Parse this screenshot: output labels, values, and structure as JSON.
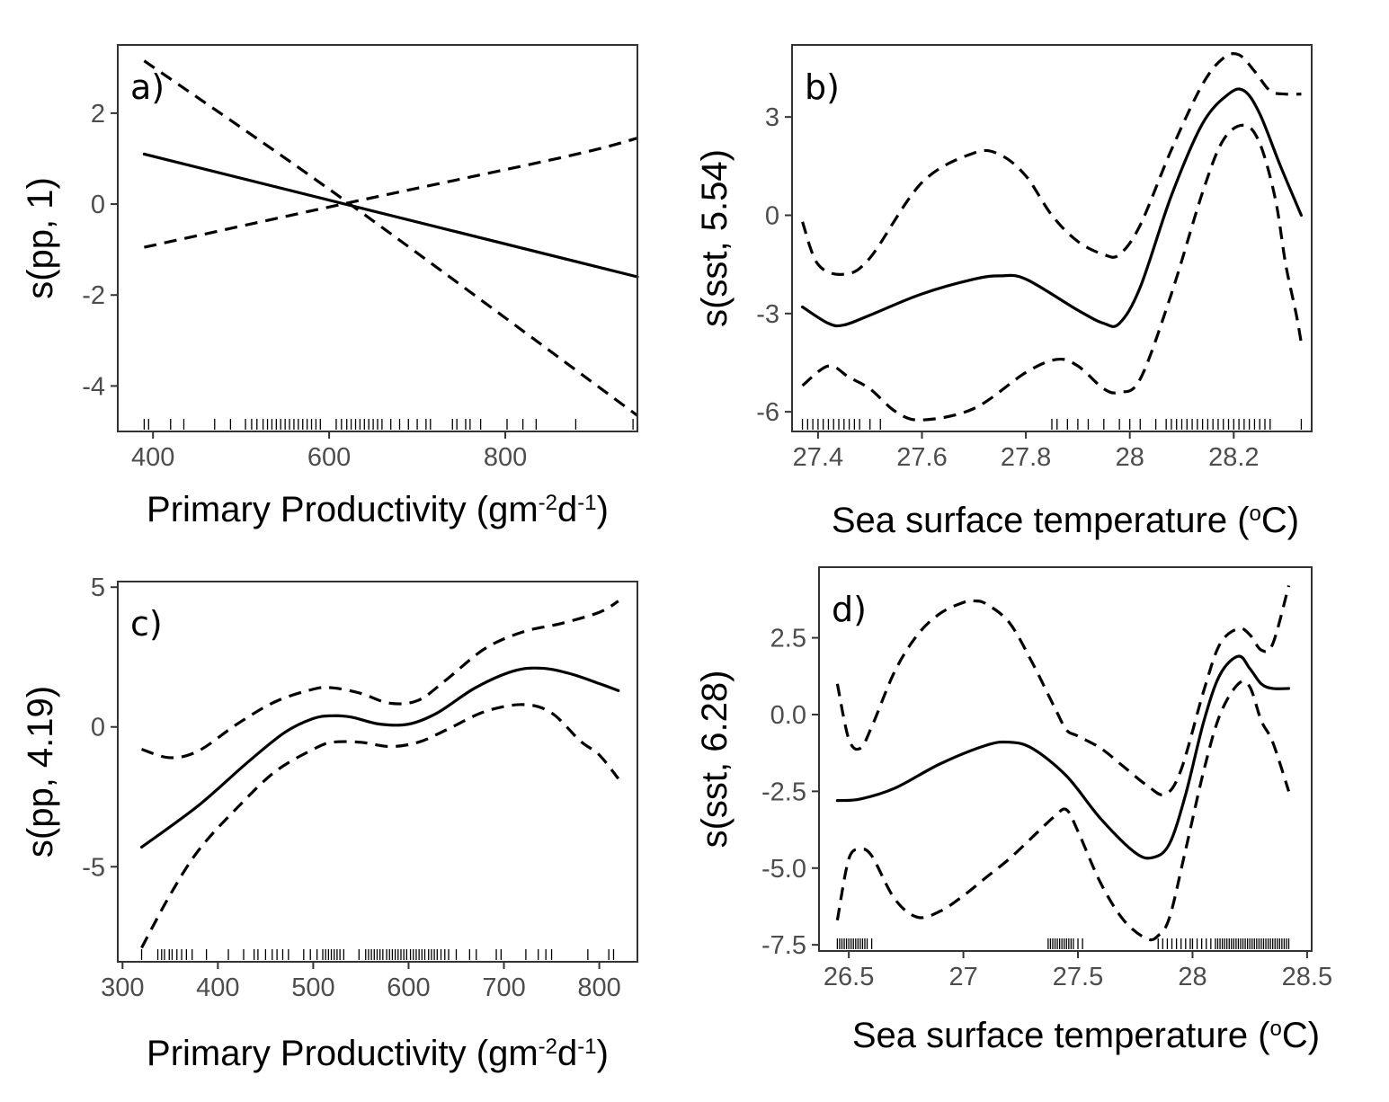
{
  "chart_data": [
    {
      "panel_label": "a)",
      "type": "line",
      "xlabel": {
        "main": "Primary Productivity (gm",
        "sup1": "-2",
        "mid": "d",
        "sup2": "-1",
        "end": ")"
      },
      "ylabel": "s(pp, 1)",
      "xlim": [
        360,
        950
      ],
      "ylim": [
        -5,
        3.5
      ],
      "x_ticks": [
        400,
        600,
        800
      ],
      "y_ticks": [
        2,
        0,
        -2,
        -4
      ],
      "series": [
        {
          "role": "fit",
          "x": [
            390,
            950
          ],
          "y": [
            1.1,
            -1.6
          ]
        },
        {
          "role": "upper",
          "x": [
            390,
            620,
            950
          ],
          "y": [
            3.15,
            0.05,
            -4.65
          ]
        },
        {
          "role": "lower",
          "x": [
            390,
            620,
            870,
            950
          ],
          "y": [
            -0.95,
            0.02,
            1.05,
            1.45
          ]
        }
      ],
      "rug": [
        390,
        395,
        420,
        435,
        470,
        488,
        505,
        512,
        518,
        525,
        530,
        535,
        540,
        545,
        550,
        555,
        560,
        565,
        570,
        575,
        580,
        585,
        590,
        608,
        614,
        620,
        625,
        630,
        635,
        640,
        645,
        650,
        655,
        660,
        670,
        680,
        690,
        700,
        710,
        715,
        740,
        745,
        755,
        760,
        772,
        802,
        820,
        835,
        880,
        945
      ]
    },
    {
      "panel_label": "b)",
      "type": "line",
      "xlabel": {
        "main": "Sea surface temperature (",
        "sup1": "o",
        "end": "C)"
      },
      "ylabel": "s(sst, 5.54)",
      "xlim": [
        27.35,
        28.35
      ],
      "ylim": [
        -6.6,
        5.2
      ],
      "x_ticks": [
        27.4,
        27.6,
        27.8,
        28.0,
        28.2
      ],
      "y_ticks": [
        3,
        0,
        -3,
        -6
      ],
      "series": [
        {
          "role": "fit",
          "x": [
            27.37,
            27.42,
            27.45,
            27.5,
            27.6,
            27.7,
            27.75,
            27.8,
            27.9,
            27.95,
            27.98,
            28.02,
            28.08,
            28.14,
            28.19,
            28.22,
            28.25,
            28.29,
            28.33
          ],
          "y": [
            -2.8,
            -3.3,
            -3.35,
            -3.05,
            -2.4,
            -1.95,
            -1.85,
            -1.95,
            -2.9,
            -3.3,
            -3.3,
            -2.2,
            0.6,
            2.8,
            3.7,
            3.8,
            3.1,
            1.5,
            0
          ]
        },
        {
          "role": "upper",
          "x": [
            27.37,
            27.4,
            27.45,
            27.5,
            27.6,
            27.7,
            27.75,
            27.8,
            27.85,
            27.9,
            27.95,
            27.98,
            28.02,
            28.08,
            28.14,
            28.18,
            28.21,
            28.24,
            28.27,
            28.3,
            28.33
          ],
          "y": [
            -0.2,
            -1.5,
            -1.8,
            -1.3,
            1.0,
            1.9,
            1.85,
            1.2,
            0.0,
            -0.8,
            -1.2,
            -1.2,
            -0.3,
            2.0,
            4.0,
            4.8,
            4.9,
            4.4,
            3.8,
            3.7,
            3.7
          ]
        },
        {
          "role": "lower",
          "x": [
            27.37,
            27.42,
            27.46,
            27.5,
            27.55,
            27.6,
            27.7,
            27.8,
            27.86,
            27.9,
            27.95,
            27.98,
            28.02,
            28.08,
            28.14,
            28.18,
            28.22,
            28.25,
            28.28,
            28.3,
            28.32,
            28.33
          ],
          "y": [
            -5.2,
            -4.6,
            -4.95,
            -5.3,
            -6.0,
            -6.25,
            -5.9,
            -4.8,
            -4.4,
            -4.6,
            -5.3,
            -5.4,
            -5.0,
            -2.4,
            0.7,
            2.3,
            2.75,
            2.2,
            0.5,
            -1.5,
            -3.0,
            -3.9
          ]
        }
      ],
      "rug": [
        27.37,
        27.38,
        27.39,
        27.4,
        27.41,
        27.42,
        27.43,
        27.44,
        27.45,
        27.46,
        27.47,
        27.48,
        27.5,
        27.52,
        27.85,
        27.86,
        27.88,
        27.9,
        27.92,
        27.95,
        27.98,
        28.0,
        28.02,
        28.05,
        28.07,
        28.08,
        28.09,
        28.1,
        28.11,
        28.12,
        28.13,
        28.14,
        28.15,
        28.16,
        28.17,
        28.18,
        28.19,
        28.2,
        28.21,
        28.22,
        28.23,
        28.24,
        28.25,
        28.26,
        28.27,
        28.33
      ]
    },
    {
      "panel_label": "c)",
      "type": "line",
      "xlabel": {
        "main": "Primary Productivity (gm",
        "sup1": "-2",
        "mid": "d",
        "sup2": "-1",
        "end": ")"
      },
      "ylabel": "s(pp, 4.19)",
      "xlim": [
        295,
        840
      ],
      "ylim": [
        -8.4,
        5.2
      ],
      "x_ticks": [
        300,
        400,
        500,
        600,
        700,
        800
      ],
      "y_ticks": [
        5,
        0,
        -5
      ],
      "series": [
        {
          "role": "fit",
          "x": [
            320,
            380,
            430,
            470,
            500,
            520,
            540,
            570,
            600,
            630,
            670,
            710,
            740,
            770,
            800,
            820
          ],
          "y": [
            -4.3,
            -2.8,
            -1.3,
            -0.2,
            0.3,
            0.4,
            0.35,
            0.1,
            0.1,
            0.5,
            1.4,
            2.0,
            2.1,
            1.9,
            1.55,
            1.3
          ]
        },
        {
          "role": "upper",
          "x": [
            320,
            350,
            380,
            420,
            460,
            500,
            520,
            550,
            580,
            610,
            640,
            680,
            720,
            760,
            800,
            820
          ],
          "y": [
            -0.8,
            -1.1,
            -0.85,
            0.1,
            0.9,
            1.35,
            1.4,
            1.2,
            0.85,
            0.95,
            1.7,
            2.8,
            3.4,
            3.7,
            4.1,
            4.5
          ]
        },
        {
          "role": "lower",
          "x": [
            320,
            350,
            380,
            420,
            460,
            500,
            520,
            550,
            580,
            610,
            640,
            680,
            720,
            750,
            780,
            800,
            820
          ],
          "y": [
            -7.9,
            -6.0,
            -4.4,
            -2.9,
            -1.6,
            -0.8,
            -0.55,
            -0.55,
            -0.7,
            -0.55,
            -0.1,
            0.55,
            0.8,
            0.5,
            -0.5,
            -1.0,
            -1.85
          ]
        }
      ],
      "rug": [
        320,
        337,
        341,
        344,
        349,
        352,
        357,
        362,
        367,
        373,
        388,
        411,
        427,
        438,
        442,
        450,
        457,
        462,
        468,
        474,
        490,
        497,
        504,
        510,
        513,
        516,
        519,
        522,
        525,
        528,
        532,
        548,
        555,
        558,
        561,
        564,
        567,
        570,
        573,
        577,
        580,
        583,
        586,
        589,
        592,
        595,
        598,
        602,
        605,
        608,
        611,
        614,
        617,
        621,
        624,
        627,
        630,
        634,
        638,
        642,
        650,
        664,
        671,
        692,
        697,
        723,
        736,
        744,
        750,
        788,
        810,
        815
      ]
    },
    {
      "panel_label": "d)",
      "type": "line",
      "xlabel": {
        "main": "Sea surface temperature (",
        "sup1": "o",
        "end": "C)"
      },
      "ylabel": "s(sst, 6.28)",
      "xlim": [
        26.37,
        28.52
      ],
      "ylim": [
        -7.7,
        4.8
      ],
      "x_ticks": [
        26.5,
        27.0,
        27.5,
        28.0,
        28.5
      ],
      "y_ticks": [
        2.5,
        0.0,
        -2.5,
        -5.0,
        -7.5
      ],
      "y_tick_labels": [
        "2.5",
        "0.0",
        "-2.5",
        "-5.0",
        "-7.5"
      ],
      "series": [
        {
          "role": "fit",
          "x": [
            26.45,
            26.55,
            26.7,
            26.9,
            27.1,
            27.2,
            27.3,
            27.45,
            27.6,
            27.75,
            27.83,
            27.9,
            27.97,
            28.05,
            28.12,
            28.2,
            28.25,
            28.3,
            28.35,
            28.42
          ],
          "y": [
            -2.8,
            -2.75,
            -2.4,
            -1.6,
            -1.0,
            -0.9,
            -1.1,
            -2.0,
            -3.4,
            -4.5,
            -4.65,
            -4.2,
            -2.6,
            -0.2,
            1.3,
            1.9,
            1.5,
            1.0,
            0.85,
            0.85
          ]
        },
        {
          "role": "upper",
          "x": [
            26.45,
            26.5,
            26.55,
            26.6,
            26.7,
            26.8,
            26.9,
            27.0,
            27.05,
            27.1,
            27.2,
            27.3,
            27.4,
            27.45,
            27.5,
            27.6,
            27.7,
            27.8,
            27.88,
            27.95,
            28.05,
            28.12,
            28.2,
            28.25,
            28.3,
            28.35,
            28.42
          ],
          "y": [
            1.0,
            -0.8,
            -1.1,
            -0.4,
            1.4,
            2.6,
            3.3,
            3.65,
            3.7,
            3.6,
            3.0,
            1.7,
            0.2,
            -0.5,
            -0.7,
            -1.1,
            -1.7,
            -2.3,
            -2.6,
            -1.8,
            0.8,
            2.3,
            2.8,
            2.6,
            2.1,
            2.3,
            4.2
          ]
        },
        {
          "role": "lower",
          "x": [
            26.45,
            26.5,
            26.55,
            26.6,
            26.7,
            26.8,
            26.9,
            27.0,
            27.1,
            27.2,
            27.3,
            27.4,
            27.45,
            27.5,
            27.6,
            27.7,
            27.8,
            27.85,
            27.9,
            27.97,
            28.05,
            28.12,
            28.2,
            28.25,
            28.3,
            28.35,
            28.42
          ],
          "y": [
            -6.7,
            -4.7,
            -4.4,
            -4.6,
            -6.0,
            -6.6,
            -6.4,
            -5.9,
            -5.3,
            -4.7,
            -4.0,
            -3.3,
            -3.1,
            -3.8,
            -5.5,
            -6.7,
            -7.3,
            -7.2,
            -6.6,
            -4.4,
            -1.8,
            0.0,
            1.0,
            0.9,
            -0.2,
            -0.9,
            -2.5
          ]
        }
      ],
      "rug": [
        26.45,
        26.46,
        26.47,
        26.48,
        26.49,
        26.5,
        26.51,
        26.52,
        26.53,
        26.54,
        26.55,
        26.56,
        26.57,
        26.58,
        26.6,
        27.37,
        27.38,
        27.39,
        27.4,
        27.41,
        27.42,
        27.43,
        27.44,
        27.45,
        27.46,
        27.47,
        27.48,
        27.5,
        27.52,
        27.85,
        27.87,
        27.89,
        27.91,
        27.93,
        27.95,
        27.97,
        27.99,
        28.0,
        28.02,
        28.04,
        28.06,
        28.08,
        28.1,
        28.11,
        28.12,
        28.13,
        28.14,
        28.15,
        28.16,
        28.17,
        28.18,
        28.19,
        28.2,
        28.21,
        28.22,
        28.23,
        28.24,
        28.25,
        28.26,
        28.27,
        28.28,
        28.29,
        28.3,
        28.31,
        28.32,
        28.33,
        28.34,
        28.35,
        28.36,
        28.37,
        28.38,
        28.39,
        28.4,
        28.41,
        28.42
      ]
    }
  ]
}
